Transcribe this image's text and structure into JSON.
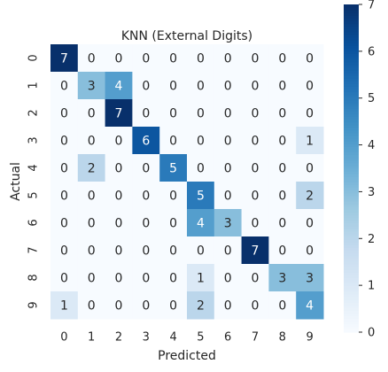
{
  "chart_data": {
    "type": "heatmap",
    "title": "KNN (External Digits)",
    "x_label": "Predicted",
    "y_label": "Actual",
    "x_categories": [
      "0",
      "1",
      "2",
      "3",
      "4",
      "5",
      "6",
      "7",
      "8",
      "9"
    ],
    "y_categories": [
      "0",
      "1",
      "2",
      "3",
      "4",
      "5",
      "6",
      "7",
      "8",
      "9"
    ],
    "values": [
      [
        7,
        0,
        0,
        0,
        0,
        0,
        0,
        0,
        0,
        0
      ],
      [
        0,
        3,
        4,
        0,
        0,
        0,
        0,
        0,
        0,
        0
      ],
      [
        0,
        0,
        7,
        0,
        0,
        0,
        0,
        0,
        0,
        0
      ],
      [
        0,
        0,
        0,
        6,
        0,
        0,
        0,
        0,
        0,
        1
      ],
      [
        0,
        2,
        0,
        0,
        5,
        0,
        0,
        0,
        0,
        0
      ],
      [
        0,
        0,
        0,
        0,
        0,
        5,
        0,
        0,
        0,
        2
      ],
      [
        0,
        0,
        0,
        0,
        0,
        4,
        3,
        0,
        0,
        0
      ],
      [
        0,
        0,
        0,
        0,
        0,
        0,
        0,
        7,
        0,
        0
      ],
      [
        0,
        0,
        0,
        0,
        0,
        1,
        0,
        0,
        3,
        3
      ],
      [
        1,
        0,
        0,
        0,
        0,
        2,
        0,
        0,
        0,
        4
      ]
    ],
    "colormap": "Blues",
    "zlim": [
      0,
      7
    ],
    "zticks": [
      0,
      1,
      2,
      3,
      4,
      5,
      6,
      7
    ]
  }
}
